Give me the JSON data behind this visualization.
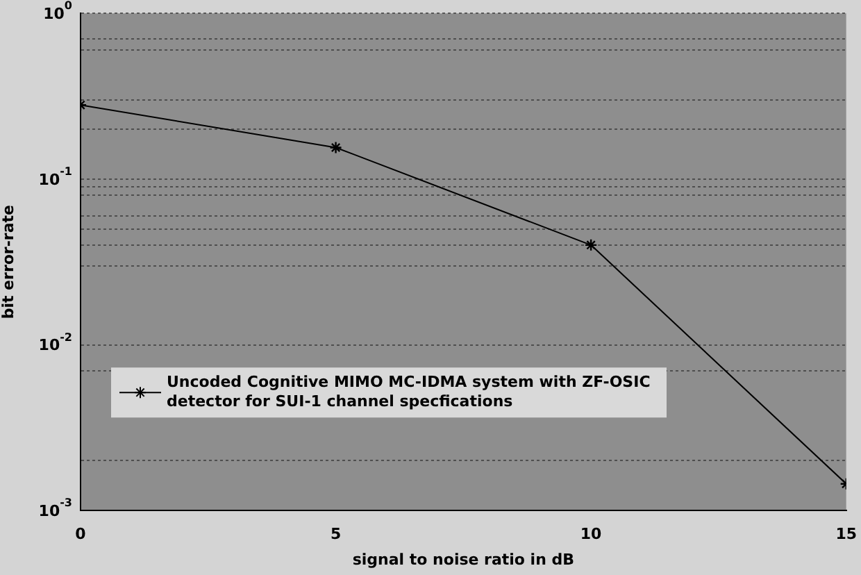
{
  "chart_data": {
    "type": "line",
    "xlabel": "signal to noise ratio in dB",
    "ylabel": "bit error-rate",
    "x": [
      0,
      5,
      10,
      15
    ],
    "series": [
      {
        "name": "Uncoded Cognitive MIMO MC-IDMA system with ZF-OSIC detector for SUI-1 channel specfications",
        "color": "#000000",
        "values": [
          0.28,
          0.155,
          0.04,
          0.00145
        ]
      }
    ],
    "log": "y",
    "xlim": [
      0,
      15
    ],
    "xticks": [
      0,
      5,
      10,
      15
    ],
    "ylim": [
      0.001,
      1
    ],
    "yticks": [
      {
        "value": 0.001,
        "label": "10$^{-3}$"
      },
      {
        "value": 0.002,
        "label": null
      },
      {
        "value": 0.007,
        "label": null
      },
      {
        "value": 0.01,
        "label": "10$^{-2}$"
      },
      {
        "value": 0.03,
        "label": null
      },
      {
        "value": 0.04,
        "label": null
      },
      {
        "value": 0.05,
        "label": null
      },
      {
        "value": 0.06,
        "label": null
      },
      {
        "value": 0.08,
        "label": null
      },
      {
        "value": 0.09,
        "label": null
      },
      {
        "value": 0.1,
        "label": "10$^{-1}$"
      },
      {
        "value": 0.2,
        "label": null
      },
      {
        "value": 0.3,
        "label": null
      },
      {
        "value": 0.6,
        "label": null
      },
      {
        "value": 0.7,
        "label": null
      },
      {
        "value": 1,
        "label": "10$^{0}$"
      }
    ],
    "grid": "y",
    "legend": "bottom left",
    "marker": "cross",
    "line_style": "solid"
  }
}
